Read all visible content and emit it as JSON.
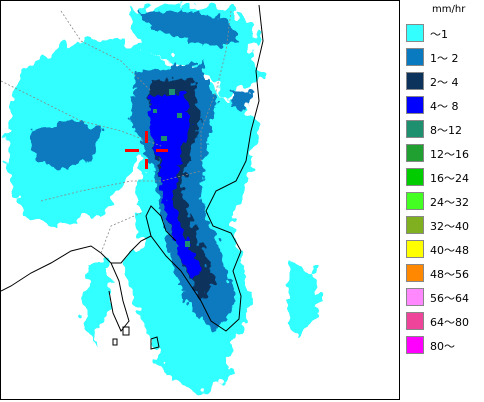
{
  "legend": {
    "unit": "mm/hr",
    "items": [
      {
        "label": "～1",
        "color": "#33ffff"
      },
      {
        "label": "1～ 2",
        "color": "#0a7ac0"
      },
      {
        "label": "2～ 4",
        "color": "#0b335c"
      },
      {
        "label": "4～ 8",
        "color": "#0000ff"
      },
      {
        "label": "8～12",
        "color": "#1e9070"
      },
      {
        "label": "12～16",
        "color": "#20a030"
      },
      {
        "label": "16～24",
        "color": "#00cc00"
      },
      {
        "label": "24～32",
        "color": "#44ff22"
      },
      {
        "label": "32～40",
        "color": "#80b020"
      },
      {
        "label": "40～48",
        "color": "#ffff00"
      },
      {
        "label": "48～56",
        "color": "#ff8800"
      },
      {
        "label": "56～64",
        "color": "#ff88ff"
      },
      {
        "label": "64～80",
        "color": "#ee4499"
      },
      {
        "label": "80～",
        "color": "#ff00ff"
      }
    ]
  },
  "map": {
    "land_color": "#ffffff",
    "coast_color": "#000000",
    "border_color": "#888888",
    "rain_colors": {
      "light": "#33ffff",
      "moderate": "#0a7ac0",
      "heavy": "#0b335c",
      "very_heavy": "#0000ff",
      "intense": "#1e9070"
    }
  }
}
